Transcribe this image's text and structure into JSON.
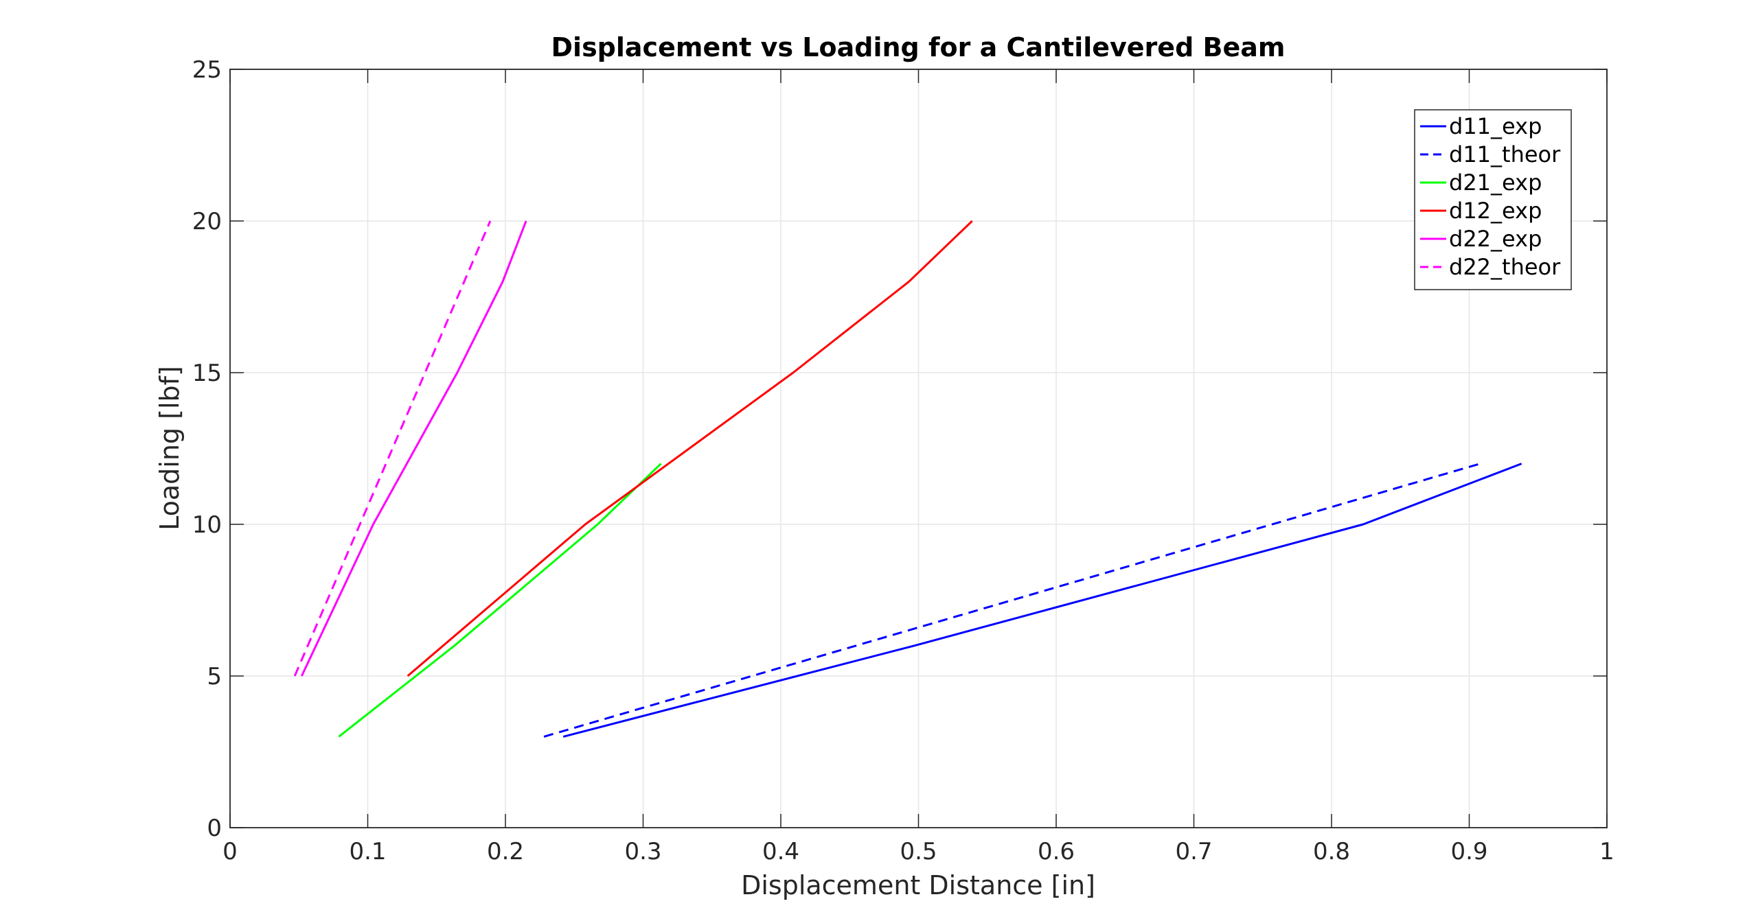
{
  "chart_data": {
    "type": "line",
    "title": "Displacement vs Loading for a Cantilevered Beam",
    "xlabel": "Displacement Distance [in]",
    "ylabel": "Loading [lbf]",
    "xlim": [
      0,
      1
    ],
    "ylim": [
      0,
      25
    ],
    "xticks": [
      0,
      0.1,
      0.2,
      0.3,
      0.4,
      0.5,
      0.6,
      0.7,
      0.8,
      0.9,
      1
    ],
    "xtick_labels": [
      "0",
      "0.1",
      "0.2",
      "0.3",
      "0.4",
      "0.5",
      "0.6",
      "0.7",
      "0.8",
      "0.9",
      "1"
    ],
    "yticks": [
      0,
      5,
      10,
      15,
      20,
      25
    ],
    "ytick_labels": [
      "0",
      "5",
      "10",
      "15",
      "20",
      "25"
    ],
    "grid": true,
    "legend_position": "top-right",
    "series": [
      {
        "name": "d11_exp",
        "color": "#0000ff",
        "dashed": false,
        "x": [
          0.242,
          0.497,
          0.823,
          0.938
        ],
        "y": [
          3,
          6,
          10,
          12
        ]
      },
      {
        "name": "d11_theor",
        "color": "#0000ff",
        "dashed": true,
        "x": [
          0.228,
          0.908
        ],
        "y": [
          3,
          12
        ]
      },
      {
        "name": "d21_exp",
        "color": "#00ff00",
        "dashed": false,
        "x": [
          0.079,
          0.163,
          0.267,
          0.313
        ],
        "y": [
          3,
          6,
          10,
          12
        ]
      },
      {
        "name": "d12_exp",
        "color": "#ff0000",
        "dashed": false,
        "x": [
          0.129,
          0.258,
          0.409,
          0.493,
          0.539
        ],
        "y": [
          5,
          10,
          15,
          18,
          20
        ]
      },
      {
        "name": "d22_exp",
        "color": "#ff00ff",
        "dashed": false,
        "x": [
          0.052,
          0.104,
          0.165,
          0.198,
          0.215
        ],
        "y": [
          5,
          10,
          15,
          18,
          20
        ]
      },
      {
        "name": "d22_theor",
        "color": "#ff00ff",
        "dashed": true,
        "x": [
          0.047,
          0.189
        ],
        "y": [
          5,
          20
        ]
      }
    ]
  }
}
